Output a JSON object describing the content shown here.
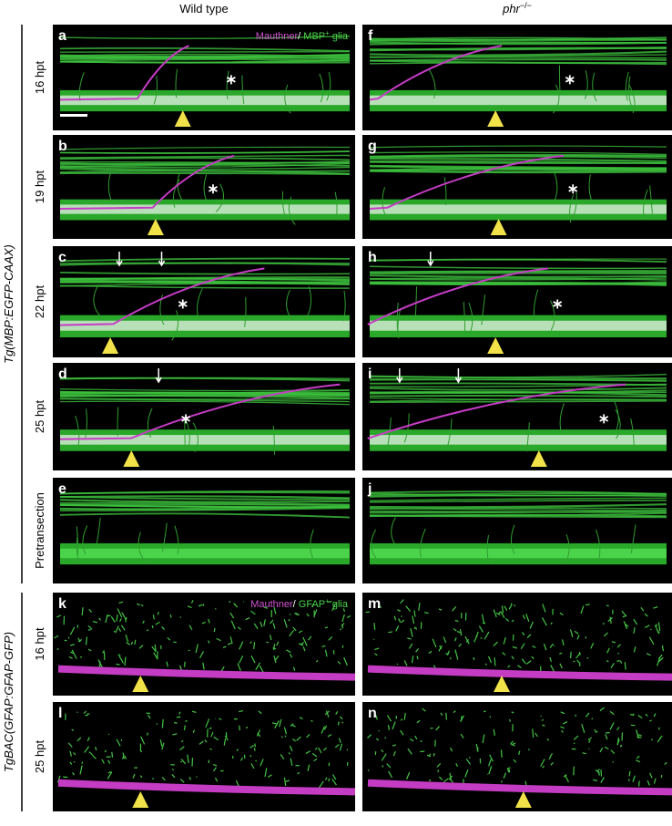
{
  "column_headers": {
    "wild_type": "Wild type",
    "mutant": {
      "text": "phr",
      "sup": "−/−"
    }
  },
  "groups": [
    {
      "label": "Tg(MBP:EGFP-CAAX)",
      "legend": {
        "axon": "Mauthner",
        "sep": "/ ",
        "marker": "MBP",
        "sup": "+",
        "glia": " glia"
      },
      "rows": [
        {
          "label": "16 hpt",
          "panels": [
            "a",
            "f"
          ]
        },
        {
          "label": "19 hpt",
          "panels": [
            "b",
            "g"
          ]
        },
        {
          "label": "22 hpt",
          "panels": [
            "c",
            "h"
          ]
        },
        {
          "label": "25 hpt",
          "panels": [
            "d",
            "i"
          ]
        },
        {
          "label": "Pretransection",
          "panels": [
            "e",
            "j"
          ]
        }
      ]
    },
    {
      "label": "TgBAC(GFAP:GFAP-GFP)",
      "legend": {
        "axon": "Mauthner",
        "sep": "/ ",
        "marker": "GFAP",
        "sup": "+",
        "glia": " glia"
      },
      "rows": [
        {
          "label": "16 hpt",
          "panels": [
            "k",
            "m"
          ]
        },
        {
          "label": "25 hpt",
          "panels": [
            "l",
            "n"
          ]
        }
      ]
    }
  ]
}
